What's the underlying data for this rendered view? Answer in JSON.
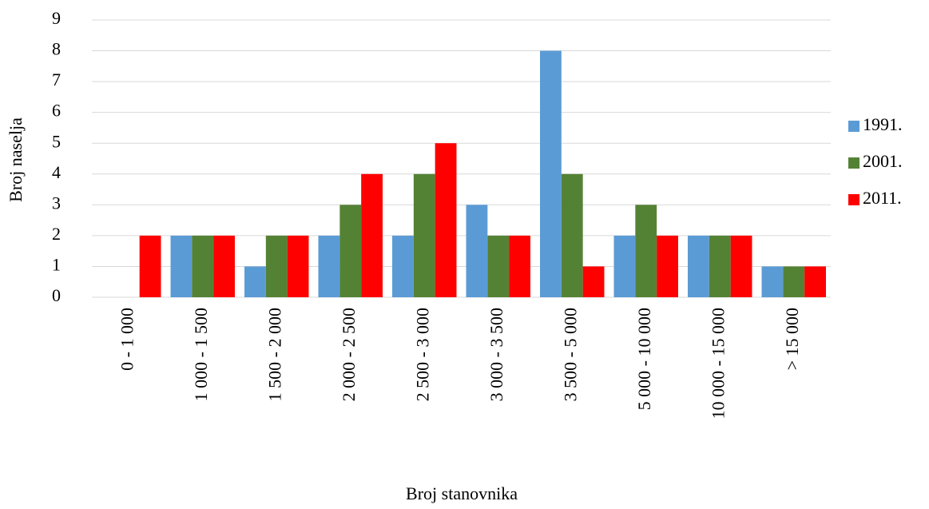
{
  "chart_data": {
    "type": "bar",
    "x_label": "Broj stanovnika",
    "y_label": "Broj naselja",
    "categories": [
      "0 - 1 000",
      "1 000 - 1 500",
      "1 500 - 2 000",
      "2 000 - 2 500",
      "2 500 - 3 000",
      "3 000 - 3 500",
      "3 500 - 5 000",
      "5 000 - 10 000",
      "10 000 - 15 000",
      "> 15 000"
    ],
    "series": [
      {
        "name": "1991.",
        "color": "#5b9bd5",
        "values": [
          0,
          2,
          1,
          2,
          2,
          3,
          8,
          2,
          2,
          1
        ]
      },
      {
        "name": "2001.",
        "color": "#548235",
        "values": [
          0,
          2,
          2,
          3,
          4,
          2,
          4,
          3,
          2,
          1
        ]
      },
      {
        "name": "2011.",
        "color": "#ff0000",
        "values": [
          2,
          2,
          2,
          4,
          5,
          2,
          1,
          2,
          2,
          1
        ]
      }
    ],
    "ylim": [
      0,
      9
    ],
    "yticks": [
      0,
      1,
      2,
      3,
      4,
      5,
      6,
      7,
      8,
      9
    ],
    "grid": true,
    "legend": "right"
  }
}
